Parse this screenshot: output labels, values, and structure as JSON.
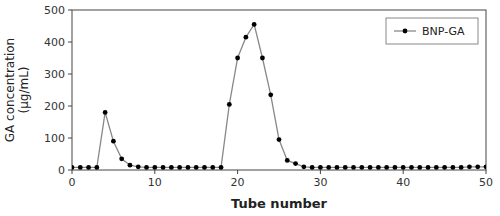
{
  "chart_data": {
    "type": "line",
    "x": [
      0,
      1,
      2,
      3,
      4,
      5,
      6,
      7,
      8,
      9,
      10,
      11,
      12,
      13,
      14,
      15,
      16,
      17,
      18,
      19,
      20,
      21,
      22,
      23,
      24,
      25,
      26,
      27,
      28,
      29,
      30,
      31,
      32,
      33,
      34,
      35,
      36,
      37,
      38,
      39,
      40,
      41,
      42,
      43,
      44,
      45,
      46,
      47,
      48,
      49,
      50
    ],
    "series": [
      {
        "name": "BNP-GA",
        "color": "#888888",
        "marker": "circle",
        "values": [
          8,
          8,
          8,
          8,
          180,
          90,
          35,
          15,
          10,
          8,
          8,
          8,
          8,
          8,
          8,
          8,
          8,
          8,
          8,
          205,
          350,
          415,
          455,
          350,
          235,
          95,
          30,
          20,
          10,
          8,
          8,
          8,
          8,
          8,
          8,
          8,
          8,
          8,
          8,
          8,
          8,
          8,
          8,
          8,
          8,
          8,
          8,
          8,
          10,
          10,
          10
        ]
      }
    ],
    "xlim": [
      0,
      50
    ],
    "ylim": [
      0,
      500
    ],
    "xticks": [
      0,
      10,
      20,
      30,
      40,
      50
    ],
    "yticks": [
      0,
      100,
      200,
      300,
      400,
      500
    ],
    "xlabel": "Tube number",
    "ylabel": "GA concentration\n(µg/mL)",
    "legend": "upper right",
    "grid": false
  }
}
